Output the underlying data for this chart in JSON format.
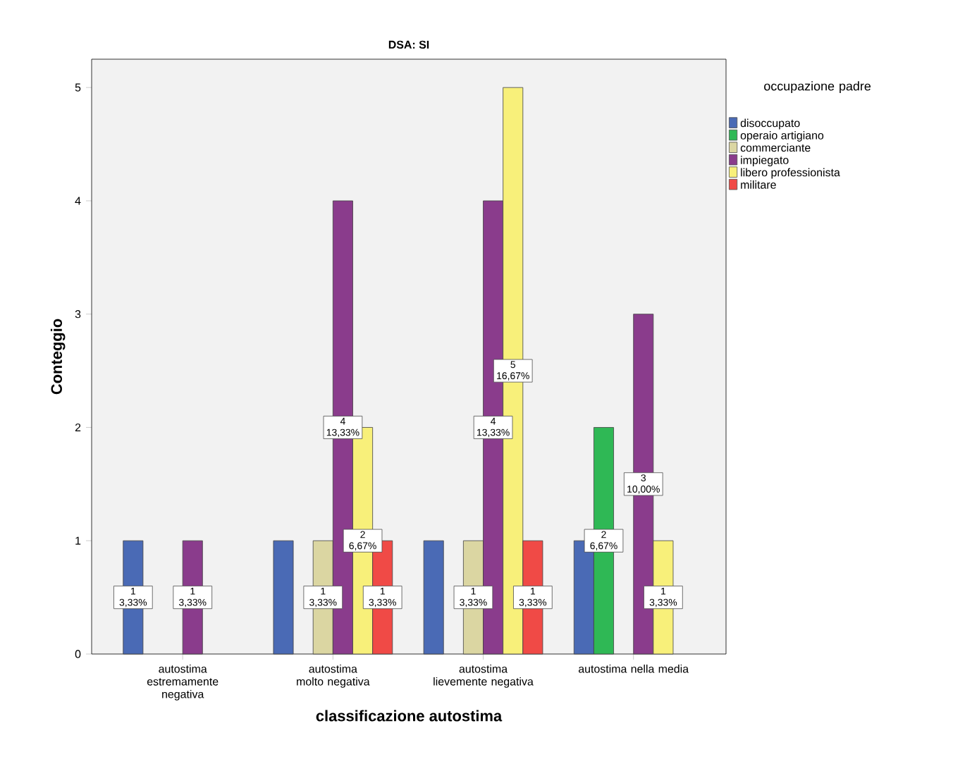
{
  "chart_data": {
    "type": "bar",
    "title": "DSA: SI",
    "xlabel": "classificazione autostima",
    "ylabel": "Conteggio",
    "legend_title": "occupazione padre",
    "legend": "right",
    "categories": [
      "autostima estremamente negativa",
      "autostima molto negativa",
      "autostima lievemente negativa",
      "autostima nella media"
    ],
    "ylim": [
      0,
      5.25
    ],
    "yticks": [
      0,
      1,
      2,
      3,
      4,
      5
    ],
    "series": [
      {
        "name": "disoccupato",
        "color": "#4a6ab5",
        "values": [
          1,
          1,
          1,
          1
        ],
        "value_labels": [
          "1 3,33%",
          null,
          null,
          null
        ]
      },
      {
        "name": "operaio artigiano",
        "color": "#2fb855",
        "values": [
          null,
          null,
          null,
          2
        ],
        "value_labels": [
          null,
          null,
          null,
          "2 6,67%"
        ]
      },
      {
        "name": "commerciante",
        "color": "#dbd6a2",
        "values": [
          null,
          1,
          1,
          null
        ],
        "value_labels": [
          null,
          "1 3,33%",
          "1 3,33%",
          null
        ]
      },
      {
        "name": "impiegato",
        "color": "#8a3c8c",
        "values": [
          1,
          4,
          4,
          3
        ],
        "value_labels": [
          "1 3,33%",
          "4 13,33%",
          "4 13,33%",
          "3 10,00%"
        ]
      },
      {
        "name": "libero professionista",
        "color": "#f8f07a",
        "values": [
          null,
          2,
          5,
          1
        ],
        "value_labels": [
          null,
          "2 6,67%",
          "5 16,67%",
          "1 3,33%"
        ]
      },
      {
        "name": "militare",
        "color": "#f04a46",
        "values": [
          null,
          1,
          1,
          null
        ],
        "value_labels": [
          null,
          "1 3,33%",
          "1 3,33%",
          null
        ]
      }
    ]
  }
}
